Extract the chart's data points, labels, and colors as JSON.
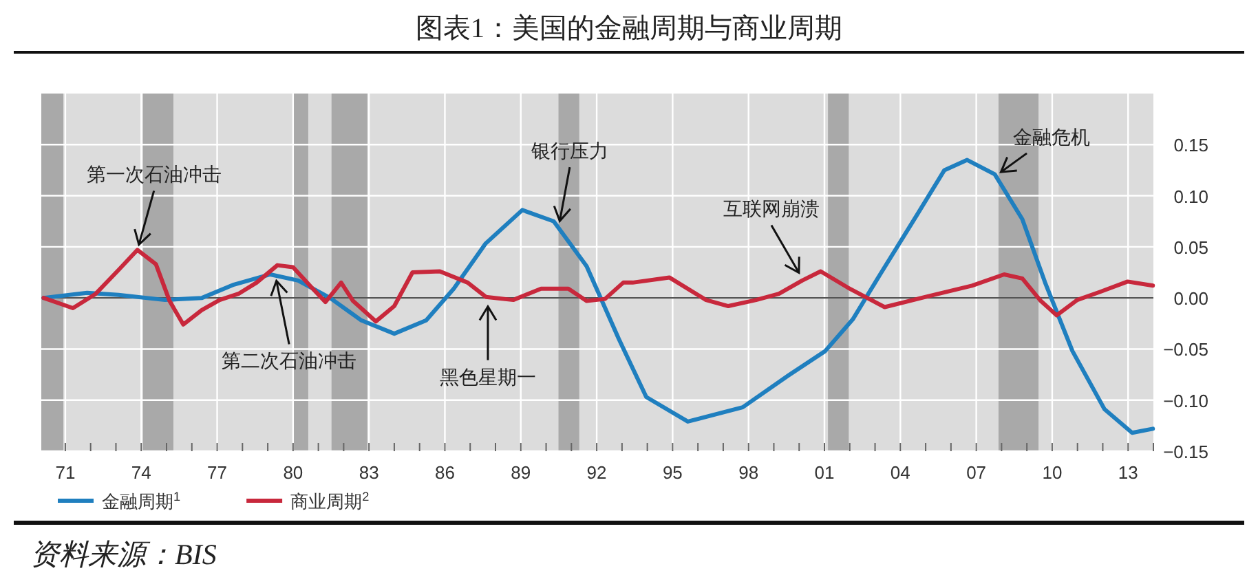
{
  "chart_data": {
    "type": "line",
    "title": "图表1：美国的金融周期与商业周期",
    "x": [
      1970.14,
      1971.86,
      1973.1,
      1974.94,
      1976.4,
      1977.66,
      1979.1,
      1980.2,
      1981.46,
      1982.7,
      1984.0,
      1985.26,
      1986.35,
      1987.6,
      1989.06,
      1990.3,
      1991.6,
      1992.87,
      1993.96,
      1995.6,
      1997.77,
      1999.57,
      2001.03,
      2002.12,
      2003.2,
      2004.65,
      2005.74,
      2006.64,
      2007.73,
      2008.82,
      2009.72,
      2010.8,
      2012.07,
      2013.16,
      2013.98
    ],
    "series": [
      {
        "name": "金融周期$^{1}$",
        "color": "#1f7fbf",
        "values": [
          0.0,
          0.005,
          0.003,
          -0.002,
          0.0,
          0.013,
          0.023,
          0.017,
          0.0,
          -0.022,
          -0.035,
          -0.022,
          0.009,
          0.053,
          0.086,
          0.075,
          0.031,
          -0.04,
          -0.097,
          -0.121,
          -0.107,
          -0.076,
          -0.052,
          -0.021,
          0.023,
          0.081,
          0.125,
          0.135,
          0.121,
          0.077,
          0.015,
          -0.052,
          -0.109,
          -0.132,
          -0.128
        ]
      },
      {
        "name": "商业周期$^{2}$",
        "color": "#c8283c",
        "x": [
          1970.14,
          1971.3,
          1972.2,
          1973.13,
          1973.85,
          1974.58,
          1975.12,
          1975.66,
          1976.39,
          1977.1,
          1977.84,
          1978.56,
          1979.38,
          1980.0,
          1980.74,
          1981.28,
          1981.9,
          1982.37,
          1983.27,
          1984.0,
          1984.72,
          1985.8,
          1986.9,
          1987.62,
          1988.7,
          1989.8,
          1990.88,
          1991.6,
          1992.33,
          1993.05,
          1993.42,
          1994.87,
          1996.32,
          1997.2,
          1998.3,
          1999.2,
          2000.12,
          2000.85,
          2001.93,
          2003.38,
          2005.0,
          2006.83,
          2008.1,
          2008.82,
          2009.55,
          2010.18,
          2010.99,
          2011.9,
          2012.98,
          2013.98
        ],
        "values": [
          0.0,
          -0.01,
          0.004,
          0.028,
          0.047,
          0.033,
          -0.003,
          -0.026,
          -0.012,
          -0.002,
          0.004,
          0.015,
          0.032,
          0.03,
          0.01,
          -0.004,
          0.015,
          -0.003,
          -0.023,
          -0.008,
          0.025,
          0.026,
          0.015,
          0.001,
          -0.002,
          0.009,
          0.009,
          -0.003,
          -0.001,
          0.015,
          0.015,
          0.02,
          -0.002,
          -0.008,
          -0.002,
          0.004,
          0.017,
          0.026,
          0.01,
          -0.009,
          0.001,
          0.012,
          0.023,
          0.019,
          -0.003,
          -0.017,
          -0.002,
          0.006,
          0.016,
          0.012
        ]
      }
    ],
    "xlim": [
      1970.05,
      2014.0
    ],
    "xticks": [
      {
        "value": 1971,
        "label": "71"
      },
      {
        "value": 1974,
        "label": "74"
      },
      {
        "value": 1977,
        "label": "77"
      },
      {
        "value": 1980,
        "label": "80"
      },
      {
        "value": 1983,
        "label": "83"
      },
      {
        "value": 1986,
        "label": "86"
      },
      {
        "value": 1989,
        "label": "89"
      },
      {
        "value": 1992,
        "label": "92"
      },
      {
        "value": 1995,
        "label": "95"
      },
      {
        "value": 1998,
        "label": "98"
      },
      {
        "value": 2001,
        "label": "01"
      },
      {
        "value": 2004,
        "label": "04"
      },
      {
        "value": 2007,
        "label": "07"
      },
      {
        "value": 2010,
        "label": "10"
      },
      {
        "value": 2013,
        "label": "13"
      }
    ],
    "ylim": [
      -0.15,
      0.2
    ],
    "yticks": [
      {
        "value": 0.15,
        "label": "0.15"
      },
      {
        "value": 0.1,
        "label": "0.10"
      },
      {
        "value": 0.05,
        "label": "0.05"
      },
      {
        "value": 0,
        "label": "0.00"
      },
      {
        "value": -0.05,
        "label": "−0.05"
      },
      {
        "value": -0.1,
        "label": "−0.10"
      },
      {
        "value": -0.15,
        "label": "−0.15"
      }
    ],
    "ref_lines": [
      {
        "axis": "y",
        "value": 0,
        "color": "#555555"
      }
    ],
    "bands": [
      {
        "axis": "x",
        "from": 1970.05,
        "to": 1970.92,
        "color": "#a9a9a9"
      },
      {
        "axis": "x",
        "from": 1974.07,
        "to": 1975.27,
        "color": "#a9a9a9"
      },
      {
        "axis": "x",
        "from": 1980.0,
        "to": 1980.6,
        "color": "#a9a9a9"
      },
      {
        "axis": "x",
        "from": 1981.52,
        "to": 1982.93,
        "color": "#a9a9a9"
      },
      {
        "axis": "x",
        "from": 1990.49,
        "to": 1991.31,
        "color": "#a9a9a9"
      },
      {
        "axis": "x",
        "from": 2001.14,
        "to": 2001.96,
        "color": "#a9a9a9"
      },
      {
        "axis": "x",
        "from": 2007.88,
        "to": 2009.46,
        "color": "#a9a9a9"
      }
    ],
    "annotations": [
      {
        "text": "第一次石油冲击",
        "x": 1973.85,
        "y": 0.047
      },
      {
        "text": "第二次石油冲击",
        "x": 1979.3,
        "y": 0.022
      },
      {
        "text": "黑色星期一",
        "x": 1987.7,
        "y": -0.003
      },
      {
        "text": "银行压力",
        "x": 1990.5,
        "y": 0.07
      },
      {
        "text": "互联网崩溃",
        "x": 2000.1,
        "y": 0.02
      },
      {
        "text": "金融危机",
        "x": 2007.8,
        "y": 0.12
      },
      "资料来源：BIS"
    ],
    "grid": true,
    "legend": "bottom left",
    "line_style": "solid",
    "marker": "none"
  }
}
